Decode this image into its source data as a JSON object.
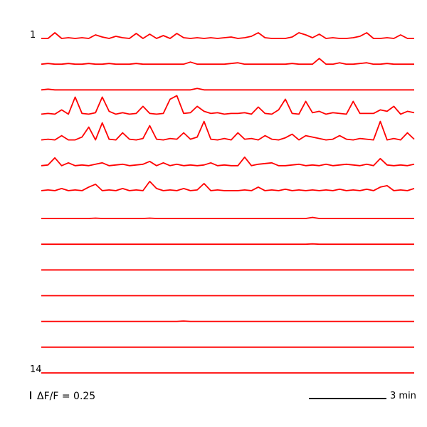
{
  "chart_data": {
    "type": "line",
    "first_trace_label": "1",
    "last_trace_label": "14",
    "line_color": "#ff0000",
    "x_scalebar_label": "3 min",
    "y_scalebar_label": "ΔF/F = 0.25",
    "series": [
      {
        "values": [
          0.02,
          0.02,
          0.1,
          0.02,
          0.03,
          0.02,
          0.03,
          0.02,
          0.07,
          0.04,
          0.02,
          0.05,
          0.03,
          0.02,
          0.09,
          0.02,
          0.08,
          0.02,
          0.06,
          0.02,
          0.09,
          0.03,
          0.02,
          0.03,
          0.02,
          0.03,
          0.02,
          0.03,
          0.04,
          0.02,
          0.03,
          0.05,
          0.1,
          0.03,
          0.02,
          0.02,
          0.02,
          0.04,
          0.1,
          0.07,
          0.03,
          0.08,
          0.02,
          0.03,
          0.02,
          0.02,
          0.03,
          0.05,
          0.1,
          0.02,
          0.02,
          0.03,
          0.02,
          0.07,
          0.02,
          0.02
        ]
      },
      {
        "values": [
          0.02,
          0.03,
          0.02,
          0.02,
          0.03,
          0.02,
          0.02,
          0.03,
          0.02,
          0.02,
          0.03,
          0.02,
          0.02,
          0.02,
          0.03,
          0.02,
          0.02,
          0.02,
          0.02,
          0.02,
          0.02,
          0.02,
          0.05,
          0.02,
          0.02,
          0.02,
          0.02,
          0.02,
          0.03,
          0.04,
          0.02,
          0.02,
          0.02,
          0.02,
          0.02,
          0.02,
          0.02,
          0.03,
          0.02,
          0.02,
          0.02,
          0.1,
          0.02,
          0.02,
          0.04,
          0.02,
          0.02,
          0.03,
          0.04,
          0.02,
          0.02,
          0.03,
          0.02,
          0.02,
          0.02,
          0.02
        ]
      },
      {
        "values": [
          0.02,
          0.03,
          0.02,
          0.02,
          0.02,
          0.02,
          0.02,
          0.02,
          0.02,
          0.02,
          0.02,
          0.02,
          0.02,
          0.02,
          0.02,
          0.02,
          0.02,
          0.02,
          0.02,
          0.02,
          0.02,
          0.02,
          0.02,
          0.04,
          0.02,
          0.02,
          0.02,
          0.02,
          0.02,
          0.02,
          0.02,
          0.02,
          0.02,
          0.02,
          0.02,
          0.02,
          0.02,
          0.02,
          0.02,
          0.02,
          0.02,
          0.02,
          0.02,
          0.02,
          0.02,
          0.02,
          0.02,
          0.02,
          0.02,
          0.02,
          0.02,
          0.02,
          0.02,
          0.02,
          0.02,
          0.02
        ]
      },
      {
        "values": [
          0.04,
          0.05,
          0.04,
          0.1,
          0.04,
          0.28,
          0.05,
          0.04,
          0.06,
          0.28,
          0.08,
          0.04,
          0.06,
          0.04,
          0.05,
          0.15,
          0.05,
          0.04,
          0.05,
          0.25,
          0.3,
          0.05,
          0.06,
          0.15,
          0.08,
          0.05,
          0.06,
          0.04,
          0.05,
          0.05,
          0.06,
          0.04,
          0.14,
          0.05,
          0.04,
          0.1,
          0.25,
          0.05,
          0.04,
          0.22,
          0.06,
          0.08,
          0.04,
          0.06,
          0.05,
          0.04,
          0.22,
          0.05,
          0.05,
          0.05,
          0.1,
          0.08,
          0.15,
          0.04,
          0.08,
          0.06
        ]
      },
      {
        "values": [
          0.04,
          0.05,
          0.04,
          0.1,
          0.04,
          0.04,
          0.08,
          0.22,
          0.04,
          0.28,
          0.05,
          0.04,
          0.14,
          0.05,
          0.04,
          0.06,
          0.24,
          0.05,
          0.04,
          0.06,
          0.05,
          0.14,
          0.05,
          0.08,
          0.3,
          0.05,
          0.04,
          0.06,
          0.04,
          0.14,
          0.05,
          0.06,
          0.04,
          0.1,
          0.05,
          0.04,
          0.07,
          0.12,
          0.04,
          0.1,
          0.08,
          0.06,
          0.04,
          0.05,
          0.1,
          0.05,
          0.04,
          0.06,
          0.05,
          0.04,
          0.3,
          0.04,
          0.06,
          0.04,
          0.14,
          0.05
        ]
      },
      {
        "values": [
          0.04,
          0.05,
          0.15,
          0.04,
          0.08,
          0.04,
          0.05,
          0.04,
          0.06,
          0.08,
          0.04,
          0.05,
          0.06,
          0.04,
          0.05,
          0.06,
          0.1,
          0.04,
          0.08,
          0.04,
          0.06,
          0.04,
          0.05,
          0.04,
          0.05,
          0.08,
          0.04,
          0.05,
          0.04,
          0.04,
          0.16,
          0.04,
          0.06,
          0.07,
          0.08,
          0.04,
          0.04,
          0.05,
          0.06,
          0.04,
          0.05,
          0.04,
          0.06,
          0.04,
          0.05,
          0.06,
          0.05,
          0.04,
          0.06,
          0.04,
          0.14,
          0.05,
          0.04,
          0.05,
          0.04,
          0.06
        ]
      },
      {
        "values": [
          0.05,
          0.06,
          0.05,
          0.08,
          0.05,
          0.06,
          0.05,
          0.1,
          0.14,
          0.05,
          0.06,
          0.05,
          0.08,
          0.05,
          0.06,
          0.05,
          0.18,
          0.08,
          0.05,
          0.06,
          0.05,
          0.08,
          0.05,
          0.06,
          0.15,
          0.05,
          0.06,
          0.05,
          0.05,
          0.05,
          0.06,
          0.05,
          0.1,
          0.05,
          0.06,
          0.05,
          0.07,
          0.05,
          0.06,
          0.05,
          0.06,
          0.05,
          0.06,
          0.05,
          0.07,
          0.05,
          0.06,
          0.05,
          0.07,
          0.05,
          0.1,
          0.12,
          0.05,
          0.06,
          0.05,
          0.08
        ]
      },
      {
        "values": [
          0.02,
          0.02,
          0.02,
          0.02,
          0.02,
          0.02,
          0.02,
          0.02,
          0.025,
          0.02,
          0.02,
          0.02,
          0.02,
          0.02,
          0.02,
          0.02,
          0.025,
          0.02,
          0.02,
          0.02,
          0.02,
          0.02,
          0.02,
          0.02,
          0.02,
          0.02,
          0.02,
          0.02,
          0.02,
          0.02,
          0.02,
          0.02,
          0.02,
          0.02,
          0.02,
          0.02,
          0.02,
          0.02,
          0.02,
          0.02,
          0.035,
          0.02,
          0.02,
          0.02,
          0.02,
          0.02,
          0.02,
          0.02,
          0.02,
          0.02,
          0.02,
          0.02,
          0.02,
          0.02,
          0.02,
          0.02
        ]
      },
      {
        "values": [
          0.02,
          0.02,
          0.02,
          0.02,
          0.02,
          0.02,
          0.02,
          0.02,
          0.02,
          0.02,
          0.02,
          0.02,
          0.02,
          0.02,
          0.02,
          0.02,
          0.02,
          0.02,
          0.02,
          0.02,
          0.02,
          0.02,
          0.02,
          0.02,
          0.02,
          0.02,
          0.02,
          0.02,
          0.02,
          0.02,
          0.02,
          0.02,
          0.02,
          0.02,
          0.02,
          0.02,
          0.02,
          0.02,
          0.02,
          0.02,
          0.025,
          0.02,
          0.02,
          0.02,
          0.02,
          0.02,
          0.02,
          0.02,
          0.02,
          0.02,
          0.02,
          0.02,
          0.02,
          0.02,
          0.02,
          0.02
        ]
      },
      {
        "values": [
          0.02,
          0.02,
          0.02,
          0.02,
          0.02,
          0.02,
          0.02,
          0.02,
          0.02,
          0.02,
          0.02,
          0.02,
          0.02,
          0.02,
          0.02,
          0.02,
          0.02,
          0.02,
          0.02,
          0.02,
          0.02,
          0.02,
          0.02,
          0.02,
          0.02,
          0.02,
          0.02,
          0.02,
          0.02,
          0.02,
          0.02,
          0.02,
          0.02,
          0.02,
          0.02,
          0.02,
          0.02,
          0.02,
          0.02,
          0.02,
          0.02,
          0.02,
          0.02,
          0.02,
          0.02,
          0.02,
          0.02,
          0.02,
          0.02,
          0.02,
          0.02,
          0.02,
          0.02,
          0.02,
          0.02,
          0.02
        ]
      },
      {
        "values": [
          0.02,
          0.02,
          0.02,
          0.02,
          0.02,
          0.02,
          0.02,
          0.02,
          0.02,
          0.02,
          0.02,
          0.02,
          0.02,
          0.02,
          0.02,
          0.02,
          0.02,
          0.02,
          0.02,
          0.02,
          0.02,
          0.02,
          0.02,
          0.02,
          0.02,
          0.02,
          0.02,
          0.02,
          0.02,
          0.02,
          0.02,
          0.02,
          0.02,
          0.02,
          0.02,
          0.02,
          0.02,
          0.02,
          0.02,
          0.02,
          0.02,
          0.02,
          0.02,
          0.02,
          0.02,
          0.02,
          0.02,
          0.02,
          0.02,
          0.02,
          0.02,
          0.02,
          0.02,
          0.02,
          0.02,
          0.02
        ]
      },
      {
        "values": [
          0.02,
          0.02,
          0.02,
          0.02,
          0.02,
          0.02,
          0.02,
          0.02,
          0.02,
          0.02,
          0.02,
          0.02,
          0.02,
          0.02,
          0.02,
          0.02,
          0.02,
          0.02,
          0.02,
          0.02,
          0.02,
          0.025,
          0.02,
          0.02,
          0.02,
          0.02,
          0.02,
          0.02,
          0.02,
          0.02,
          0.02,
          0.02,
          0.02,
          0.02,
          0.02,
          0.02,
          0.02,
          0.02,
          0.02,
          0.02,
          0.02,
          0.02,
          0.02,
          0.02,
          0.02,
          0.02,
          0.02,
          0.02,
          0.02,
          0.02,
          0.02,
          0.02,
          0.02,
          0.02,
          0.02,
          0.02
        ]
      },
      {
        "values": [
          0.02,
          0.02,
          0.02,
          0.02,
          0.02,
          0.02,
          0.02,
          0.02,
          0.02,
          0.02,
          0.02,
          0.02,
          0.02,
          0.02,
          0.02,
          0.02,
          0.02,
          0.02,
          0.02,
          0.02,
          0.02,
          0.02,
          0.02,
          0.02,
          0.02,
          0.02,
          0.02,
          0.02,
          0.02,
          0.02,
          0.02,
          0.02,
          0.02,
          0.02,
          0.02,
          0.02,
          0.02,
          0.02,
          0.02,
          0.02,
          0.02,
          0.02,
          0.02,
          0.02,
          0.02,
          0.02,
          0.02,
          0.02,
          0.02,
          0.02,
          0.02,
          0.02,
          0.02,
          0.02,
          0.02,
          0.02
        ]
      },
      {
        "values": [
          0.02,
          0.02,
          0.02,
          0.02,
          0.02,
          0.02,
          0.02,
          0.02,
          0.02,
          0.02,
          0.02,
          0.02,
          0.02,
          0.02,
          0.02,
          0.02,
          0.02,
          0.02,
          0.02,
          0.02,
          0.02,
          0.02,
          0.02,
          0.02,
          0.02,
          0.02,
          0.02,
          0.02,
          0.02,
          0.02,
          0.02,
          0.02,
          0.02,
          0.02,
          0.02,
          0.02,
          0.02,
          0.02,
          0.02,
          0.02,
          0.02,
          0.02,
          0.02,
          0.02,
          0.02,
          0.02,
          0.02,
          0.02,
          0.02,
          0.02,
          0.02,
          0.02,
          0.02,
          0.02,
          0.02,
          0.02
        ]
      }
    ]
  }
}
